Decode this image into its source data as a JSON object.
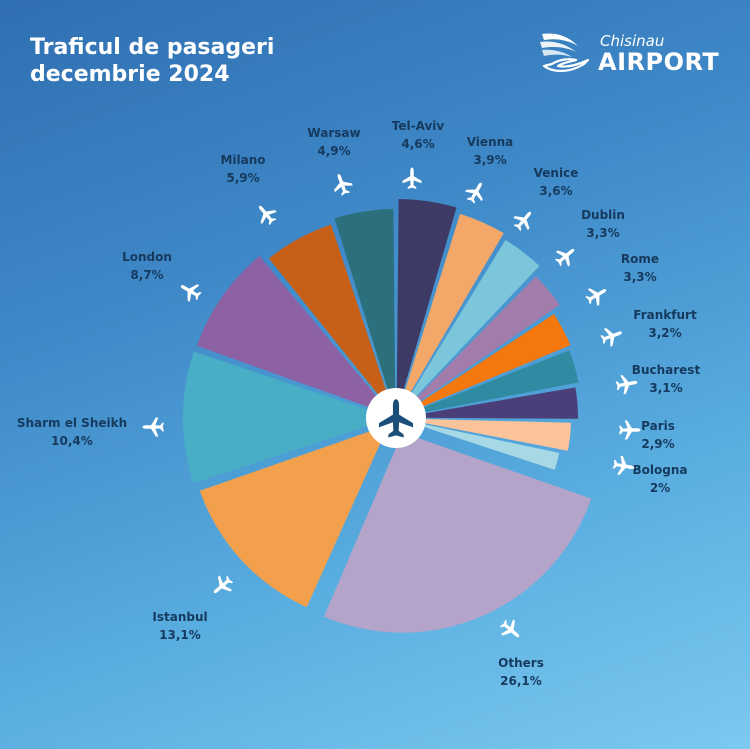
{
  "header": {
    "title_line1": "Traficul de pasageri",
    "title_line2": "decembrie 2024"
  },
  "logo": {
    "small_text": "Chisinau",
    "big_text": "AIRPORT"
  },
  "icons": {
    "label_icon": "airplane-icon",
    "center_icon": "airplane-icon"
  },
  "chart_data": {
    "type": "pie",
    "title": "Traficul de pasageri decembrie 2024",
    "categories": [
      "Tel-Aviv",
      "Vienna",
      "Venice",
      "Dublin",
      "Rome",
      "Frankfurt",
      "Bucharest",
      "Paris",
      "Bologna",
      "Others",
      "Istanbul",
      "Sharm el Sheikh",
      "London",
      "Milano",
      "Warsaw"
    ],
    "values": [
      4.6,
      3.9,
      3.6,
      3.3,
      3.3,
      3.2,
      3.1,
      2.9,
      2.0,
      26.1,
      13.1,
      10.4,
      8.7,
      5.9,
      4.9
    ],
    "value_labels": [
      "4,6%",
      "3,9%",
      "3,6%",
      "3,3%",
      "3,3%",
      "3,2%",
      "3,1%",
      "2,9%",
      "2%",
      "26,1%",
      "13,1%",
      "10,4%",
      "8,7%",
      "5,9%",
      "4,9%"
    ],
    "colors": [
      "#3d3a66",
      "#f3a86a",
      "#7cc6dc",
      "#a27dab",
      "#f5780e",
      "#2f8aa2",
      "#4a3f78",
      "#fbc39a",
      "#a6d8e6",
      "#b5a4c9",
      "#f3a04c",
      "#48aec6",
      "#8c62a5",
      "#c75f17",
      "#2c6f7d"
    ]
  }
}
